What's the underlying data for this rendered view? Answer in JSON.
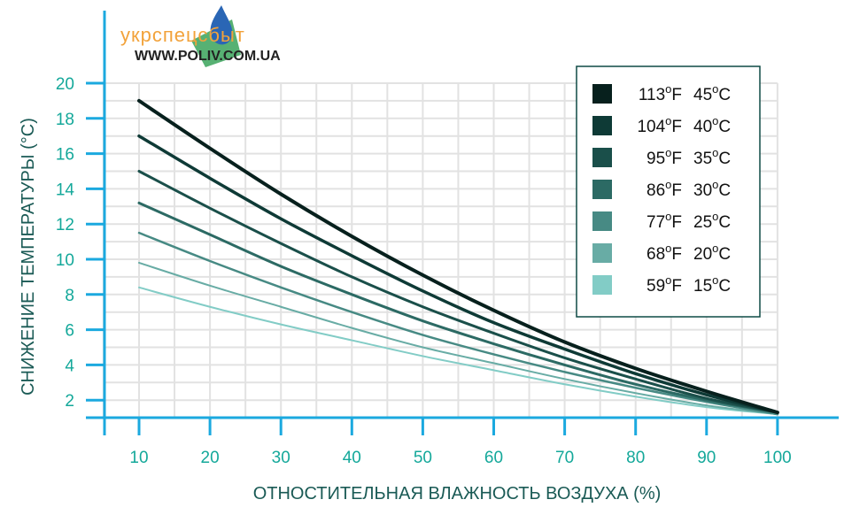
{
  "logo": {
    "text": "укрспецсбыт",
    "url": "WWW.POLIV.COM.UA",
    "colors": {
      "text": "#f2a23a",
      "drop_blue": "#2a66b5",
      "drop_green": "#3aa35a"
    }
  },
  "chart_data": {
    "type": "line",
    "ylabel": "СНИЖЕНИЕ ТЕМПЕРАТУРЫ (°C)",
    "xlabel": "ОТНОСТИТЕЛЬНАЯ ВЛАЖНОСТЬ ВОЗДУХА (%)",
    "xlim": [
      5,
      100
    ],
    "ylim": [
      1,
      20
    ],
    "xticks": [
      10,
      20,
      30,
      40,
      50,
      60,
      70,
      80,
      90,
      100
    ],
    "yticks": [
      2,
      4,
      6,
      8,
      10,
      12,
      14,
      16,
      18,
      20
    ],
    "grid": true,
    "legend_position": "top-right",
    "series": [
      {
        "name": "113°F 45°C",
        "f": "113",
        "c": "45",
        "color": "#07201d",
        "width": 4,
        "x": [
          10,
          20,
          30,
          40,
          50,
          60,
          70,
          80,
          90,
          100
        ],
        "y": [
          19.0,
          16.3,
          13.7,
          11.3,
          9.1,
          7.1,
          5.3,
          3.8,
          2.5,
          1.3
        ]
      },
      {
        "name": "104°F 40°C",
        "f": "104",
        "c": "40",
        "color": "#0e3a36",
        "width": 3.5,
        "x": [
          10,
          20,
          30,
          40,
          50,
          60,
          70,
          80,
          90,
          100
        ],
        "y": [
          17.0,
          14.6,
          12.3,
          10.2,
          8.2,
          6.4,
          4.9,
          3.5,
          2.3,
          1.3
        ]
      },
      {
        "name": "95°F 35°C",
        "f": "95",
        "c": "35",
        "color": "#1a4f4a",
        "width": 3,
        "x": [
          10,
          20,
          30,
          40,
          50,
          60,
          70,
          80,
          90,
          100
        ],
        "y": [
          15.0,
          12.9,
          10.9,
          9.0,
          7.3,
          5.8,
          4.4,
          3.2,
          2.1,
          1.3
        ]
      },
      {
        "name": "86°F 30°C",
        "f": "86",
        "c": "30",
        "color": "#2c6a64",
        "width": 3,
        "x": [
          10,
          20,
          30,
          40,
          50,
          60,
          70,
          80,
          90,
          100
        ],
        "y": [
          13.2,
          11.4,
          9.6,
          8.0,
          6.5,
          5.2,
          4.0,
          2.9,
          2.0,
          1.3
        ]
      },
      {
        "name": "77°F 25°C",
        "f": "77",
        "c": "25",
        "color": "#478a84",
        "width": 2.5,
        "x": [
          10,
          20,
          30,
          40,
          50,
          60,
          70,
          80,
          90,
          100
        ],
        "y": [
          11.5,
          9.9,
          8.4,
          7.0,
          5.7,
          4.6,
          3.6,
          2.7,
          1.9,
          1.2
        ]
      },
      {
        "name": "68°F 20°C",
        "f": "68",
        "c": "20",
        "color": "#68aca5",
        "width": 2,
        "x": [
          10,
          20,
          30,
          40,
          50,
          60,
          70,
          80,
          90,
          100
        ],
        "y": [
          9.8,
          8.5,
          7.3,
          6.1,
          5.0,
          4.1,
          3.2,
          2.4,
          1.7,
          1.2
        ]
      },
      {
        "name": "59°F 15°C",
        "f": "59",
        "c": "15",
        "color": "#82ccc6",
        "width": 2,
        "x": [
          10,
          20,
          30,
          40,
          50,
          60,
          70,
          80,
          90,
          100
        ],
        "y": [
          8.4,
          7.3,
          6.3,
          5.4,
          4.5,
          3.7,
          2.9,
          2.2,
          1.6,
          1.2
        ]
      }
    ],
    "colors": {
      "axis": "#1ba9df",
      "grid": "#e2e2e2",
      "tick_label": "#14a89a",
      "axis_title": "#1a5a55",
      "legend_border": "#0e4a45"
    }
  }
}
